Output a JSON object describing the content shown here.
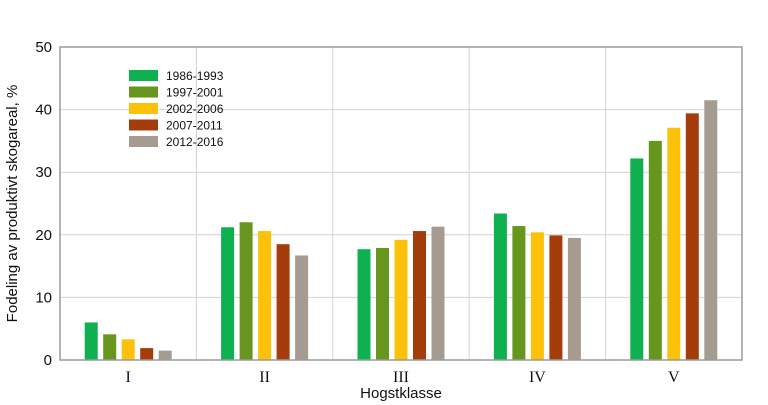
{
  "chart_data": {
    "type": "bar",
    "title": "",
    "xlabel": "Hogstklasse",
    "ylabel": "Fodeling av produktivt skogareal, %",
    "ylim": [
      0,
      50
    ],
    "yticks": [
      "0",
      "10",
      "20",
      "30",
      "40",
      "50"
    ],
    "categories": [
      "I",
      "II",
      "III",
      "IV",
      "V"
    ],
    "grid": true,
    "legend_position": "top-left",
    "series": [
      {
        "name": "1986-1993",
        "color": "#0fb050",
        "values": [
          6.0,
          21.2,
          17.7,
          23.4,
          32.2
        ]
      },
      {
        "name": "1997-2001",
        "color": "#66961e",
        "values": [
          4.1,
          22.0,
          17.9,
          21.4,
          35.0
        ]
      },
      {
        "name": "2002-2006",
        "color": "#fcc20b",
        "values": [
          3.3,
          20.6,
          19.2,
          20.4,
          37.1
        ]
      },
      {
        "name": "2007-2011",
        "color": "#a43c0c",
        "values": [
          1.9,
          18.5,
          20.6,
          19.9,
          39.4
        ]
      },
      {
        "name": "2012-2016",
        "color": "#a69b91",
        "values": [
          1.5,
          16.7,
          21.3,
          19.5,
          41.5
        ]
      }
    ]
  }
}
